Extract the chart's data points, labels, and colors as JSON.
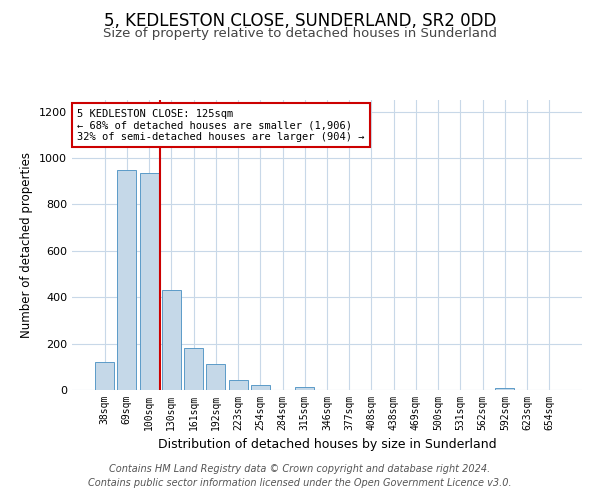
{
  "title": "5, KEDLESTON CLOSE, SUNDERLAND, SR2 0DD",
  "subtitle": "Size of property relative to detached houses in Sunderland",
  "xlabel": "Distribution of detached houses by size in Sunderland",
  "ylabel": "Number of detached properties",
  "categories": [
    "38sqm",
    "69sqm",
    "100sqm",
    "130sqm",
    "161sqm",
    "192sqm",
    "223sqm",
    "254sqm",
    "284sqm",
    "315sqm",
    "346sqm",
    "377sqm",
    "408sqm",
    "438sqm",
    "469sqm",
    "500sqm",
    "531sqm",
    "562sqm",
    "592sqm",
    "623sqm",
    "654sqm"
  ],
  "values": [
    120,
    950,
    935,
    430,
    180,
    110,
    45,
    20,
    0,
    15,
    0,
    0,
    0,
    0,
    0,
    0,
    0,
    0,
    10,
    0,
    0
  ],
  "bar_color": "#c5d8e8",
  "bar_edge_color": "#5b9bc8",
  "reference_line_color": "#cc0000",
  "annotation_line1": "5 KEDLESTON CLOSE: 125sqm",
  "annotation_line2": "← 68% of detached houses are smaller (1,906)",
  "annotation_line3": "32% of semi-detached houses are larger (904) →",
  "ylim": [
    0,
    1250
  ],
  "yticks": [
    0,
    200,
    400,
    600,
    800,
    1000,
    1200
  ],
  "footer_line1": "Contains HM Land Registry data © Crown copyright and database right 2024.",
  "footer_line2": "Contains public sector information licensed under the Open Government Licence v3.0.",
  "background_color": "#ffffff",
  "grid_color": "#c8d8e8"
}
